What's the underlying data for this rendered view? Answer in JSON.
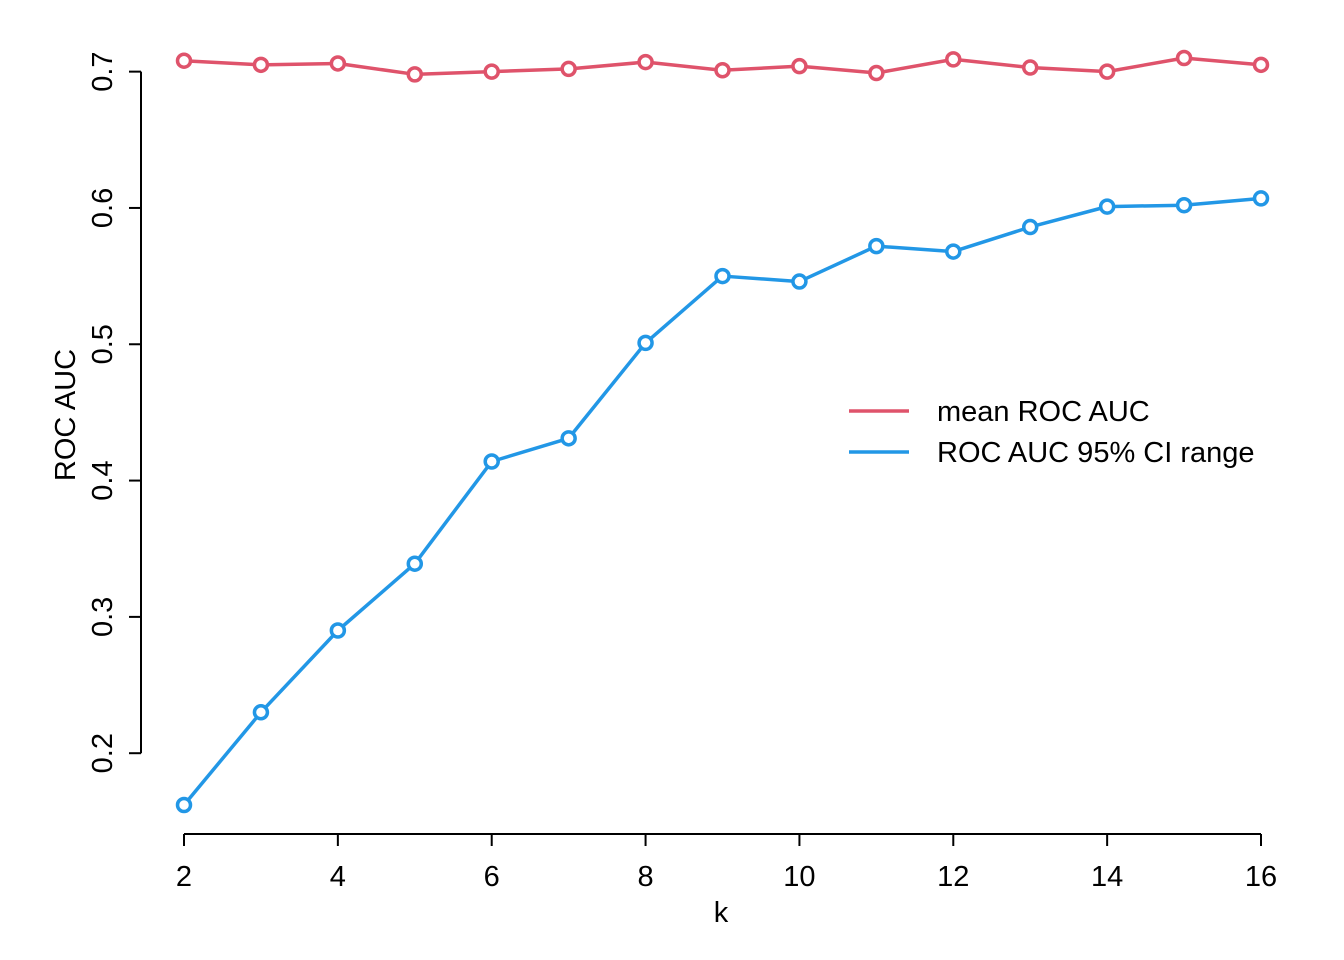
{
  "chart_data": {
    "type": "line",
    "title": "",
    "xlabel": "k",
    "ylabel": "ROC AUC",
    "x": [
      2,
      3,
      4,
      5,
      6,
      7,
      8,
      9,
      10,
      11,
      12,
      13,
      14,
      15,
      16
    ],
    "series": [
      {
        "name": "mean ROC AUC",
        "color": "#DF536B",
        "values": [
          0.708,
          0.705,
          0.706,
          0.698,
          0.7,
          0.702,
          0.707,
          0.701,
          0.704,
          0.699,
          0.709,
          0.703,
          0.7,
          0.71,
          0.705
        ]
      },
      {
        "name": "ROC AUC 95% CI range",
        "color": "#2297E6",
        "values": [
          0.162,
          0.23,
          0.29,
          0.339,
          0.414,
          0.431,
          0.501,
          0.55,
          0.546,
          0.572,
          0.568,
          0.586,
          0.601,
          0.602,
          0.607
        ]
      }
    ],
    "xticks": [
      2,
      4,
      6,
      8,
      10,
      12,
      14,
      16
    ],
    "xtick_labels": [
      "2",
      "4",
      "6",
      "8",
      "10",
      "12",
      "14",
      "16"
    ],
    "yticks": [
      0.2,
      0.3,
      0.4,
      0.5,
      0.6,
      0.7
    ],
    "ytick_labels": [
      "0.2",
      "0.3",
      "0.4",
      "0.5",
      "0.6",
      "0.7"
    ],
    "xlim": [
      2,
      16
    ],
    "ylim": [
      0.162,
      0.71
    ],
    "grid": false,
    "legend_position": "center-right",
    "marker": "open-circle"
  }
}
